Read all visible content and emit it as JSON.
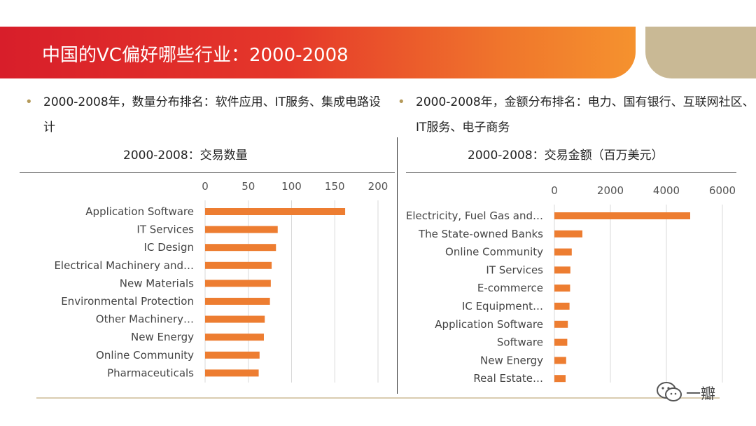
{
  "slide": {
    "title": "中国的VC偏好哪些行业：2000-2008",
    "bullet_left": "2000-2008年，数量分布排名：软件应用、IT服务、集成电路设计",
    "bullet_right": "2000-2008年，金额分布排名：电力、国有银行、互联网社区、IT服务、电子商务",
    "bullet_symbol": "•",
    "watermark": "一瓣"
  },
  "chart_data": [
    {
      "type": "bar",
      "orientation": "horizontal",
      "title": "2000-2008：交易数量",
      "categories": [
        "Application Software",
        "IT Services",
        "IC Design",
        "Electrical Machinery and…",
        "New Materials",
        "Environmental Protection",
        "Other Machinery…",
        "New Energy",
        "Online Community",
        "Pharmaceuticals"
      ],
      "values": [
        162,
        84,
        82,
        77,
        76,
        75,
        69,
        68,
        63,
        62
      ],
      "xlim": [
        0,
        200
      ],
      "ticks": [
        "0",
        "50",
        "100",
        "150",
        "200"
      ],
      "tick_values": [
        0,
        50,
        100,
        150,
        200
      ],
      "color": "#ed7d31",
      "axis_position": "top",
      "grid": true
    },
    {
      "type": "bar",
      "orientation": "horizontal",
      "title": "2000-2008：交易金额（百万美元）",
      "categories": [
        "Electricity, Fuel Gas and…",
        "The State-owned Banks",
        "Online Community",
        "IT Services",
        "E-commerce",
        "IC Equipment…",
        "Application Software",
        "Software",
        "New Energy",
        "Real Estate…"
      ],
      "values": [
        4850,
        1000,
        620,
        570,
        560,
        540,
        480,
        460,
        420,
        400
      ],
      "xlim": [
        0,
        6000
      ],
      "ticks": [
        "0",
        "2000",
        "4000",
        "6000"
      ],
      "tick_values": [
        0,
        2000,
        4000,
        6000
      ],
      "color": "#ed7d31",
      "axis_position": "top",
      "grid": true
    }
  ]
}
